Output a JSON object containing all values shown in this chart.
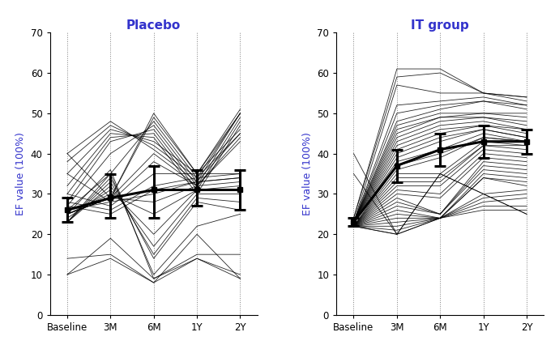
{
  "title_left": "Placebo",
  "title_right": "IT group",
  "ylabel": "EF value (100%)",
  "xtick_labels": [
    "Baseline",
    "3M",
    "6M",
    "1Y",
    "2Y"
  ],
  "ytick_vals": [
    0,
    10,
    20,
    30,
    40,
    50,
    60,
    70
  ],
  "ylim": [
    0,
    70
  ],
  "title_color": "#3333cc",
  "ylabel_color": "#3333cc",
  "placebo_individual": [
    [
      25,
      29,
      50,
      35,
      50
    ],
    [
      25,
      29,
      49,
      35,
      51
    ],
    [
      26,
      35,
      48,
      34,
      50
    ],
    [
      27,
      40,
      47,
      33,
      50
    ],
    [
      28,
      43,
      46,
      32,
      49
    ],
    [
      30,
      44,
      45,
      31,
      48
    ],
    [
      32,
      45,
      44,
      30,
      47
    ],
    [
      35,
      46,
      43,
      35,
      46
    ],
    [
      38,
      47,
      42,
      34,
      45
    ],
    [
      40,
      48,
      41,
      33,
      45
    ],
    [
      40,
      29,
      40,
      32,
      44
    ],
    [
      35,
      28,
      38,
      32,
      43
    ],
    [
      30,
      27,
      35,
      35,
      35
    ],
    [
      28,
      26,
      32,
      34,
      35
    ],
    [
      27,
      25,
      31,
      33,
      34
    ],
    [
      26,
      28,
      30,
      33,
      34
    ],
    [
      25,
      29,
      28,
      32,
      33
    ],
    [
      25,
      30,
      25,
      31,
      32
    ],
    [
      24,
      31,
      20,
      31,
      31
    ],
    [
      23,
      32,
      17,
      30,
      30
    ],
    [
      23,
      33,
      15,
      29,
      28
    ],
    [
      23,
      34,
      14,
      28,
      26
    ],
    [
      23,
      35,
      10,
      22,
      25
    ],
    [
      25,
      36,
      9,
      15,
      15
    ],
    [
      10,
      19,
      9,
      14,
      10
    ],
    [
      14,
      15,
      8,
      14,
      9
    ],
    [
      10,
      14,
      8,
      20,
      9
    ]
  ],
  "placebo_mean": [
    26,
    29,
    31,
    31,
    31
  ],
  "placebo_ci_low": [
    23,
    24,
    24,
    27,
    26
  ],
  "placebo_ci_high": [
    29,
    35,
    37,
    36,
    36
  ],
  "it_individual": [
    [
      24,
      61,
      61,
      55,
      54
    ],
    [
      24,
      59,
      60,
      55,
      54
    ],
    [
      23,
      57,
      55,
      55,
      53
    ],
    [
      23,
      52,
      53,
      54,
      52
    ],
    [
      23,
      50,
      52,
      53,
      52
    ],
    [
      23,
      48,
      51,
      53,
      51
    ],
    [
      23,
      47,
      50,
      50,
      50
    ],
    [
      23,
      46,
      49,
      50,
      49
    ],
    [
      23,
      45,
      49,
      49,
      48
    ],
    [
      23,
      44,
      48,
      49,
      47
    ],
    [
      23,
      43,
      47,
      48,
      46
    ],
    [
      23,
      42,
      46,
      47,
      46
    ],
    [
      23,
      41,
      45,
      47,
      45
    ],
    [
      23,
      40,
      44,
      46,
      44
    ],
    [
      23,
      39,
      43,
      46,
      44
    ],
    [
      23,
      38,
      41,
      45,
      43
    ],
    [
      22,
      37,
      40,
      44,
      43
    ],
    [
      22,
      36,
      39,
      44,
      43
    ],
    [
      22,
      35,
      35,
      43,
      42
    ],
    [
      22,
      34,
      34,
      42,
      42
    ],
    [
      22,
      33,
      33,
      42,
      41
    ],
    [
      22,
      32,
      32,
      41,
      40
    ],
    [
      22,
      31,
      30,
      40,
      39
    ],
    [
      22,
      30,
      29,
      39,
      38
    ],
    [
      22,
      29,
      25,
      38,
      37
    ],
    [
      22,
      28,
      25,
      37,
      36
    ],
    [
      22,
      27,
      25,
      36,
      35
    ],
    [
      22,
      26,
      24,
      35,
      34
    ],
    [
      22,
      25,
      24,
      34,
      33
    ],
    [
      22,
      24,
      24,
      34,
      32
    ],
    [
      22,
      23,
      24,
      30,
      31
    ],
    [
      22,
      22,
      24,
      29,
      30
    ],
    [
      22,
      21,
      24,
      28,
      29
    ],
    [
      22,
      20,
      24,
      27,
      27
    ],
    [
      22,
      20,
      24,
      26,
      26
    ],
    [
      40,
      20,
      35,
      30,
      25
    ],
    [
      35,
      20,
      35,
      30,
      25
    ]
  ],
  "it_mean": [
    23,
    37,
    41,
    43,
    43
  ],
  "it_ci_low": [
    22,
    33,
    37,
    39,
    40
  ],
  "it_ci_high": [
    24,
    41,
    45,
    47,
    46
  ]
}
